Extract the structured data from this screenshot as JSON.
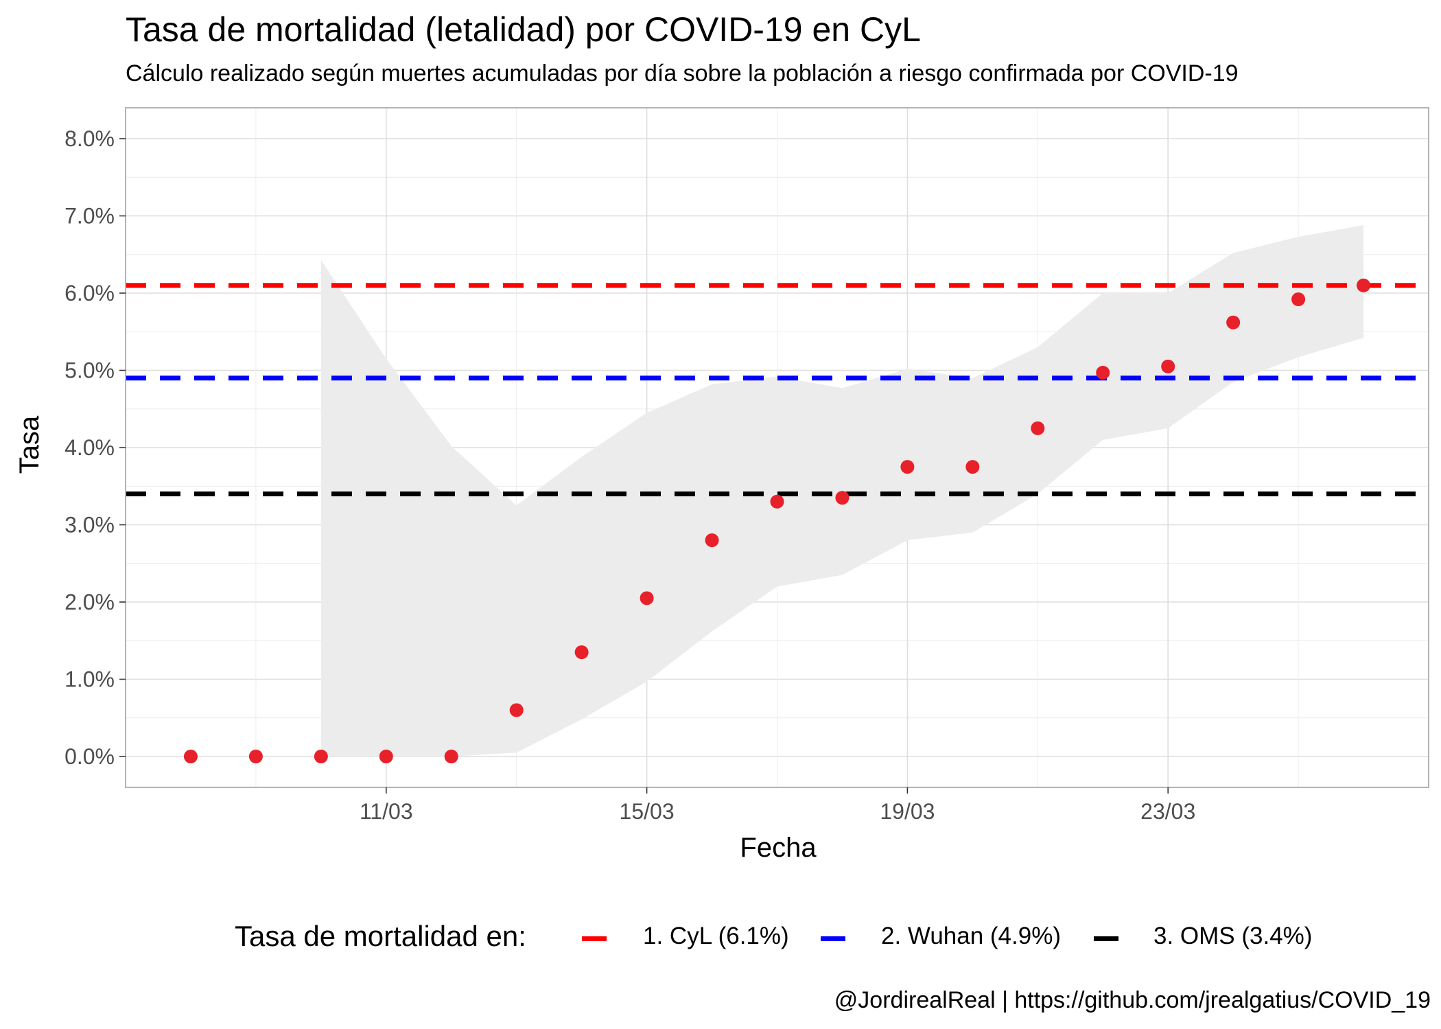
{
  "chart_data": {
    "type": "scatter",
    "title": "Tasa de mortalidad (letalidad) por COVID-19 en CyL",
    "subtitle": "Cálculo realizado según muertes acumuladas por día sobre la población a riesgo confirmada por COVID-19",
    "caption": "@JordirealReal | https://github.com/jrealgatius/COVID_19",
    "xlabel": "Fecha",
    "ylabel": "Tasa",
    "x_tick_labels": [
      "11/03",
      "15/03",
      "19/03",
      "23/03"
    ],
    "x_ticks": [
      "2020-03-11",
      "2020-03-15",
      "2020-03-19",
      "2020-03-23"
    ],
    "xlim": [
      "2020-03-07",
      "2020-03-27"
    ],
    "y_tick_labels": [
      "0.0%",
      "1.0%",
      "2.0%",
      "3.0%",
      "4.0%",
      "5.0%",
      "6.0%",
      "7.0%",
      "8.0%"
    ],
    "y_ticks": [
      0,
      1,
      2,
      3,
      4,
      5,
      6,
      7,
      8
    ],
    "ylim": [
      -0.4,
      8.4
    ],
    "grid": true,
    "legend_position": "bottom",
    "points": {
      "color": "#E8202A",
      "x": [
        "2020-03-08",
        "2020-03-09",
        "2020-03-10",
        "2020-03-11",
        "2020-03-12",
        "2020-03-13",
        "2020-03-14",
        "2020-03-15",
        "2020-03-16",
        "2020-03-17",
        "2020-03-18",
        "2020-03-19",
        "2020-03-20",
        "2020-03-21",
        "2020-03-22",
        "2020-03-23",
        "2020-03-24",
        "2020-03-25",
        "2020-03-26"
      ],
      "y": [
        0.0,
        0.0,
        0.0,
        0.0,
        0.0,
        0.6,
        1.35,
        2.05,
        2.8,
        3.3,
        3.35,
        3.75,
        3.75,
        4.25,
        4.97,
        5.05,
        5.62,
        5.92,
        6.1
      ]
    },
    "confidence_band": {
      "color": "#EBEBEB",
      "x": [
        "2020-03-10",
        "2020-03-11",
        "2020-03-12",
        "2020-03-13",
        "2020-03-14",
        "2020-03-15",
        "2020-03-16",
        "2020-03-17",
        "2020-03-18",
        "2020-03-19",
        "2020-03-20",
        "2020-03-21",
        "2020-03-22",
        "2020-03-23",
        "2020-03-24",
        "2020-03-25",
        "2020-03-26"
      ],
      "lower": [
        0.0,
        0.0,
        0.0,
        0.05,
        0.48,
        0.97,
        1.62,
        2.2,
        2.35,
        2.8,
        2.9,
        3.4,
        4.1,
        4.25,
        4.85,
        5.17,
        5.42
      ],
      "upper": [
        6.43,
        5.15,
        4.02,
        3.25,
        3.88,
        4.45,
        4.82,
        4.92,
        4.77,
        5.02,
        4.9,
        5.3,
        6.0,
        6.0,
        6.52,
        6.73,
        6.88
      ]
    },
    "reference_lines": [
      {
        "name": "1. CyL (6.1%)",
        "y": 6.1,
        "color": "#FF0000"
      },
      {
        "name": "2. Wuhan (4.9%)",
        "y": 4.9,
        "color": "#0000FF"
      },
      {
        "name": "3. OMS (3.4%)",
        "y": 3.4,
        "color": "#000000"
      }
    ],
    "legend_title": "Tasa de mortalidad en:"
  }
}
